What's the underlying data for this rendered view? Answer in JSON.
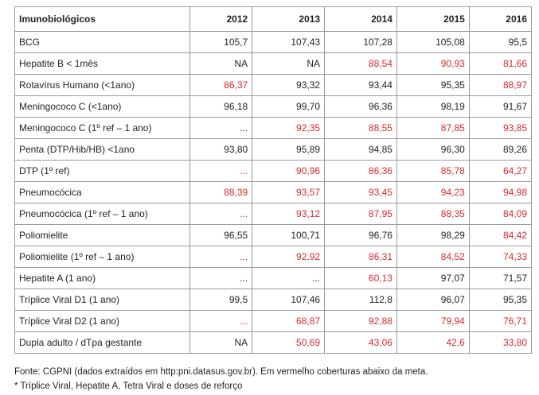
{
  "table": {
    "header": [
      "Imunobiológicos",
      "2012",
      "2013",
      "2014",
      "2015",
      "2016"
    ],
    "rows": [
      {
        "cells": [
          "BCG",
          "105,7",
          "107,43",
          "107,28",
          "105,08",
          "95,5"
        ],
        "colors": [
          "#231f20",
          "#231f20",
          "#231f20",
          "#231f20",
          "#231f20",
          "#231f20"
        ]
      },
      {
        "cells": [
          "Hepatite B < 1mês",
          "NA",
          "NA",
          "88,54",
          "90,93",
          "81,66"
        ],
        "colors": [
          "#231f20",
          "#231f20",
          "#231f20",
          "#d7282f",
          "#d7282f",
          "#d7282f"
        ]
      },
      {
        "cells": [
          "Rotavírus Humano (<1ano)",
          "86,37",
          "93,32",
          "93,44",
          "95,35",
          "88,97"
        ],
        "colors": [
          "#231f20",
          "#d7282f",
          "#231f20",
          "#231f20",
          "#231f20",
          "#d7282f"
        ]
      },
      {
        "cells": [
          "Meningococo C (<1ano)",
          "96,18",
          "99,70",
          "96,36",
          "98,19",
          "91,67"
        ],
        "colors": [
          "#231f20",
          "#231f20",
          "#231f20",
          "#231f20",
          "#231f20",
          "#231f20"
        ]
      },
      {
        "cells": [
          "Meningococo C (1º ref – 1 ano)",
          "...",
          "92,35",
          "88,55",
          "87,85",
          "93,85"
        ],
        "colors": [
          "#231f20",
          "#231f20",
          "#d7282f",
          "#d7282f",
          "#d7282f",
          "#d7282f"
        ]
      },
      {
        "cells": [
          "Penta (DTP/Hib/HB) <1ano",
          "93,80",
          "95,89",
          "94,85",
          "96,30",
          "89,26"
        ],
        "colors": [
          "#231f20",
          "#231f20",
          "#231f20",
          "#231f20",
          "#231f20",
          "#231f20"
        ]
      },
      {
        "cells": [
          "DTP (1º ref)",
          "...",
          "90,96",
          "86,36",
          "85,78",
          "64,27"
        ],
        "colors": [
          "#231f20",
          "#d7282f",
          "#d7282f",
          "#d7282f",
          "#d7282f",
          "#d7282f"
        ]
      },
      {
        "cells": [
          "Pneumocócica",
          "88,39",
          "93,57",
          "93,45",
          "94,23",
          "94,98"
        ],
        "colors": [
          "#231f20",
          "#d7282f",
          "#d7282f",
          "#d7282f",
          "#d7282f",
          "#d7282f"
        ]
      },
      {
        "cells": [
          "Pneumocócica (1º ref – 1 ano)",
          "...",
          "93,12",
          "87,95",
          "88,35",
          "84,09"
        ],
        "colors": [
          "#231f20",
          "#d7282f",
          "#d7282f",
          "#d7282f",
          "#d7282f",
          "#d7282f"
        ]
      },
      {
        "cells": [
          "Poliomielite",
          "96,55",
          "100,71",
          "96,76",
          "98,29",
          "84,42"
        ],
        "colors": [
          "#231f20",
          "#231f20",
          "#231f20",
          "#231f20",
          "#231f20",
          "#d7282f"
        ]
      },
      {
        "cells": [
          "Poliomielite (1º ref – 1 ano)",
          "...",
          "92,92",
          "86,31",
          "84,52",
          "74,33"
        ],
        "colors": [
          "#231f20",
          "#d7282f",
          "#d7282f",
          "#d7282f",
          "#d7282f",
          "#d7282f"
        ]
      },
      {
        "cells": [
          "Hepatite A (1 ano)",
          "...",
          "...",
          "60,13",
          "97,07",
          "71,57"
        ],
        "colors": [
          "#231f20",
          "#231f20",
          "#231f20",
          "#d7282f",
          "#231f20",
          "#231f20"
        ]
      },
      {
        "cells": [
          "Tríplice Viral D1 (1 ano)",
          "99,5",
          "107,46",
          "112,8",
          "96,07",
          "95,35"
        ],
        "colors": [
          "#231f20",
          "#231f20",
          "#231f20",
          "#231f20",
          "#231f20",
          "#231f20"
        ]
      },
      {
        "cells": [
          "Tríplice Viral D2 (1 ano)",
          "...",
          "68,87",
          "92,88",
          "79,94",
          "76,71"
        ],
        "colors": [
          "#231f20",
          "#d7282f",
          "#d7282f",
          "#d7282f",
          "#d7282f",
          "#d7282f"
        ]
      },
      {
        "cells": [
          "Dupla adulto / dTpa gestante",
          "NA",
          "50,69",
          "43,06",
          "42,6",
          "33,80"
        ],
        "colors": [
          "#231f20",
          "#231f20",
          "#d7282f",
          "#d7282f",
          "#d7282f",
          "#d7282f"
        ]
      }
    ]
  },
  "footer": [
    "Fonte: CGPNI (dados extraídos em http:pni.datasus.gov.br). Em vermelho coberturas abaixo da meta.",
    "* Tríplice Viral, Hepatite A, Tetra Viral e doses de reforço"
  ]
}
